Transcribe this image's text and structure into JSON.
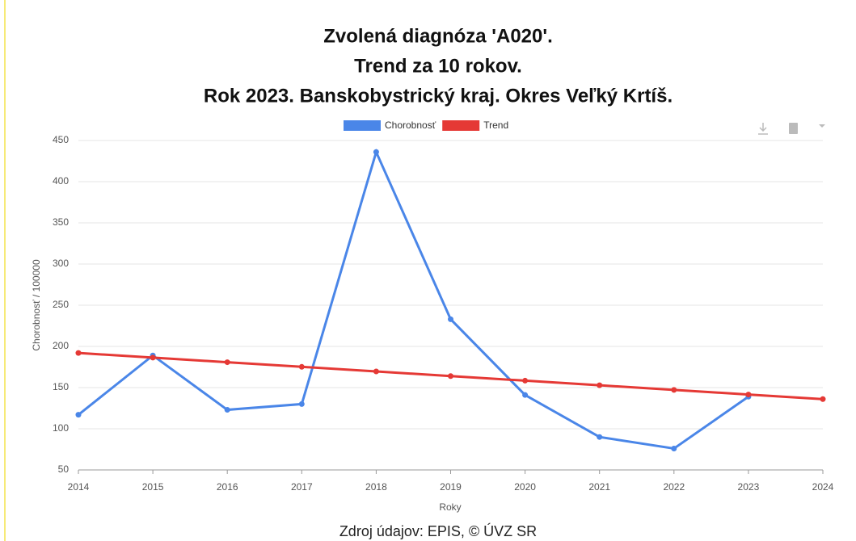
{
  "chart_data": {
    "type": "line",
    "title": [
      "Zvolená diagnóza 'A020'.",
      "Trend za 10 rokov.",
      "Rok 2023. Banskobystrický kraj. Okres Veľký Krtíš."
    ],
    "x": [
      2014,
      2015,
      2016,
      2017,
      2018,
      2019,
      2020,
      2021,
      2022,
      2023,
      2024
    ],
    "series": [
      {
        "name": "Chorobnosť",
        "color": "#4a86e8",
        "values": [
          117,
          189,
          123,
          130,
          436,
          233,
          141,
          90,
          76,
          139,
          null
        ]
      },
      {
        "name": "Trend",
        "color": "#e53935",
        "values": [
          192,
          186.4,
          180.8,
          175.2,
          169.6,
          164,
          158.4,
          152.8,
          147.2,
          141.6,
          136
        ]
      }
    ],
    "xlabel": "Roky",
    "ylabel": "Chorobnosť / 100000",
    "xlim": [
      2014,
      2024
    ],
    "xticks": [
      2014,
      2015,
      2016,
      2017,
      2018,
      2019,
      2020,
      2021,
      2022,
      2023,
      2024
    ],
    "ylim": [
      50,
      450
    ],
    "yticks": [
      50,
      100,
      150,
      200,
      250,
      300,
      350,
      400,
      450
    ],
    "grid": true,
    "legend": "top",
    "source": "Zdroj údajov: EPIS, © ÚVZ SR"
  }
}
